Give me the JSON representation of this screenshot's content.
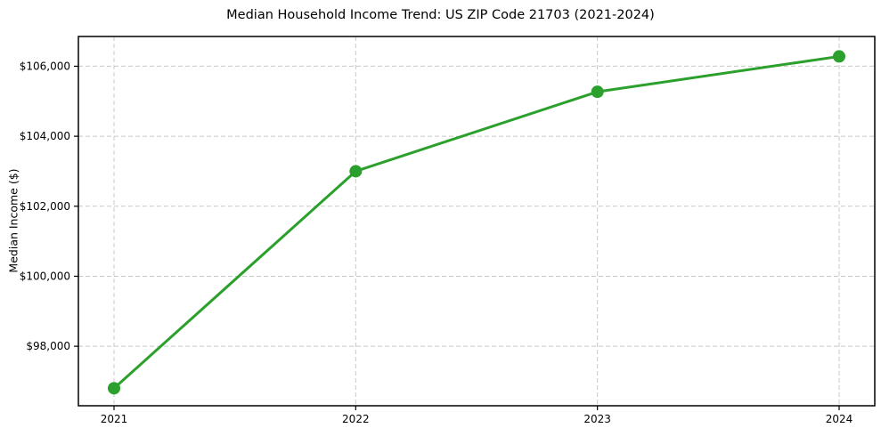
{
  "window": {
    "background_color": "#ffffff"
  },
  "chart_data": {
    "type": "line",
    "title": "Median Household Income Trend: US ZIP Code 21703 (2021-2024)",
    "xlabel": "",
    "ylabel": "Median Income ($)",
    "categories": [
      "2021",
      "2022",
      "2023",
      "2024"
    ],
    "series": [
      {
        "name": "Median Household Income",
        "color": "#2ca02c",
        "values": [
          96800,
          103000,
          105270,
          106280
        ]
      }
    ],
    "y_ticks": [
      {
        "value": 98000,
        "label": "$98,000"
      },
      {
        "value": 100000,
        "label": "$100,000"
      },
      {
        "value": 102000,
        "label": "$102,000"
      },
      {
        "value": 104000,
        "label": "$104,000"
      },
      {
        "value": 106000,
        "label": "$106,000"
      }
    ],
    "ylim": [
      96300,
      106850
    ],
    "grid": true,
    "grid_color": "#c8c8c8",
    "grid_style": "dashed",
    "axis_color": "#000000",
    "text_color": "#000000",
    "legend": "none",
    "marker": "circle"
  }
}
